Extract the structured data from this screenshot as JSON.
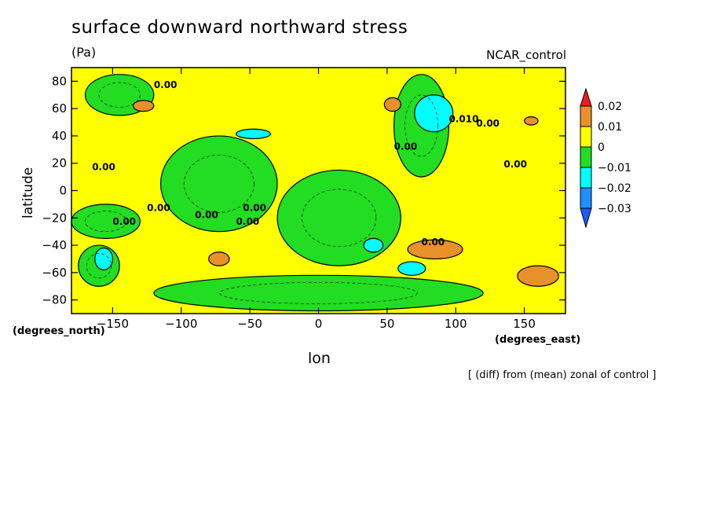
{
  "chart_data": {
    "type": "heatmap",
    "title": "surface downward northward stress",
    "units": "(Pa)",
    "dataset": "NCAR_control",
    "xlabel": "lon",
    "ylabel": "latitude",
    "x_unit": "(degrees_east)",
    "y_unit": "(degrees_north)",
    "note": "[ (diff) from (mean) zonal of control ]",
    "xlim": [
      -180,
      180
    ],
    "ylim": [
      -90,
      90
    ],
    "x_ticks": [
      -150,
      -100,
      -50,
      0,
      50,
      100,
      150
    ],
    "x_tick_labels": [
      "−150",
      "−100",
      "−50",
      "0",
      "50",
      "100",
      "150"
    ],
    "y_ticks": [
      80,
      60,
      40,
      20,
      0,
      -20,
      -40,
      -60,
      -80
    ],
    "y_tick_labels": [
      "80",
      "60",
      "40",
      "20",
      "0",
      "−20",
      "−40",
      "−60",
      "−80"
    ],
    "contour_labels": [
      "0.00",
      "0.00",
      "0.00",
      "0.00",
      "0.00",
      "0.00",
      "0.00",
      "0.00",
      "0.00",
      "0.00",
      "0.00",
      "0.010"
    ],
    "colorbar": {
      "levels": [
        0.02,
        0.01,
        0,
        -0.01,
        -0.02,
        -0.03
      ],
      "labels": [
        "0.02",
        "0.01",
        "0",
        "−0.01",
        "−0.02",
        "−0.03"
      ],
      "colors": [
        "#ee1c1c",
        "#e8912a",
        "#ffff00",
        "#22dd22",
        "#00ffff",
        "#1e90ff",
        "#1e5aff"
      ]
    },
    "regions": [
      {
        "level": "negative",
        "lon": [
          -170,
          -120
        ],
        "lat": [
          55,
          85
        ]
      },
      {
        "level": "negative",
        "lon": [
          -115,
          -30
        ],
        "lat": [
          -30,
          40
        ]
      },
      {
        "level": "negative",
        "lon": [
          -30,
          60
        ],
        "lat": [
          -55,
          15
        ]
      },
      {
        "level": "negative",
        "lon": [
          55,
          95
        ],
        "lat": [
          10,
          85
        ]
      },
      {
        "level": "negative",
        "lon": [
          -180,
          -130
        ],
        "lat": [
          -35,
          -10
        ]
      },
      {
        "level": "negative",
        "lon": [
          -175,
          -145
        ],
        "lat": [
          -70,
          -40
        ]
      },
      {
        "level": "negative",
        "lon": [
          -120,
          120
        ],
        "lat": [
          -88,
          -62
        ]
      },
      {
        "level": "strong_negative",
        "lon": [
          70,
          98
        ],
        "lat": [
          43,
          70
        ]
      },
      {
        "level": "strong_negative",
        "lon": [
          -163,
          -150
        ],
        "lat": [
          -58,
          -42
        ]
      },
      {
        "level": "strong_negative",
        "lon": [
          33,
          47
        ],
        "lat": [
          -45,
          -35
        ]
      },
      {
        "level": "strong_negative",
        "lon": [
          58,
          78
        ],
        "lat": [
          -62,
          -52
        ]
      },
      {
        "level": "strong_negative",
        "lon": [
          -60,
          -35
        ],
        "lat": [
          38,
          45
        ]
      },
      {
        "level": "positive",
        "lon": [
          -135,
          -120
        ],
        "lat": [
          58,
          66
        ]
      },
      {
        "level": "positive",
        "lon": [
          48,
          60
        ],
        "lat": [
          58,
          68
        ]
      },
      {
        "level": "positive",
        "lon": [
          65,
          105
        ],
        "lat": [
          -50,
          -36
        ]
      },
      {
        "level": "positive",
        "lon": [
          -80,
          -65
        ],
        "lat": [
          -55,
          -45
        ]
      },
      {
        "level": "positive",
        "lon": [
          145,
          175
        ],
        "lat": [
          -70,
          -55
        ]
      },
      {
        "level": "positive",
        "lon": [
          150,
          160
        ],
        "lat": [
          48,
          54
        ]
      }
    ]
  }
}
